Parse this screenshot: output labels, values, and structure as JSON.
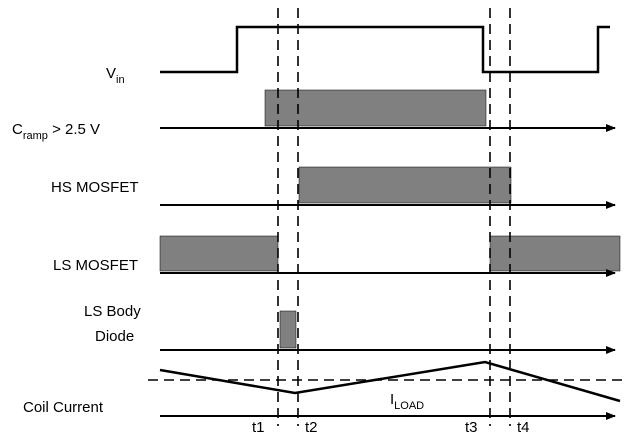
{
  "signals": {
    "vin": {
      "base": "V",
      "sub": "in"
    },
    "cramp": {
      "base": "C",
      "sub": "ramp",
      "suffix": " > 2.5 V"
    },
    "hs": {
      "label": "HS MOSFET"
    },
    "ls": {
      "label": "LS MOSFET"
    },
    "body_diode": {
      "line1": "LS Body",
      "line2": "Diode"
    },
    "coil": {
      "label": "Coil Current"
    }
  },
  "iload": {
    "base": "I",
    "sub": "LOAD"
  },
  "times": [
    "t1",
    "t2",
    "t3",
    "t4"
  ],
  "colors": {
    "bar_fill": "#808080",
    "line": "#000000"
  }
}
